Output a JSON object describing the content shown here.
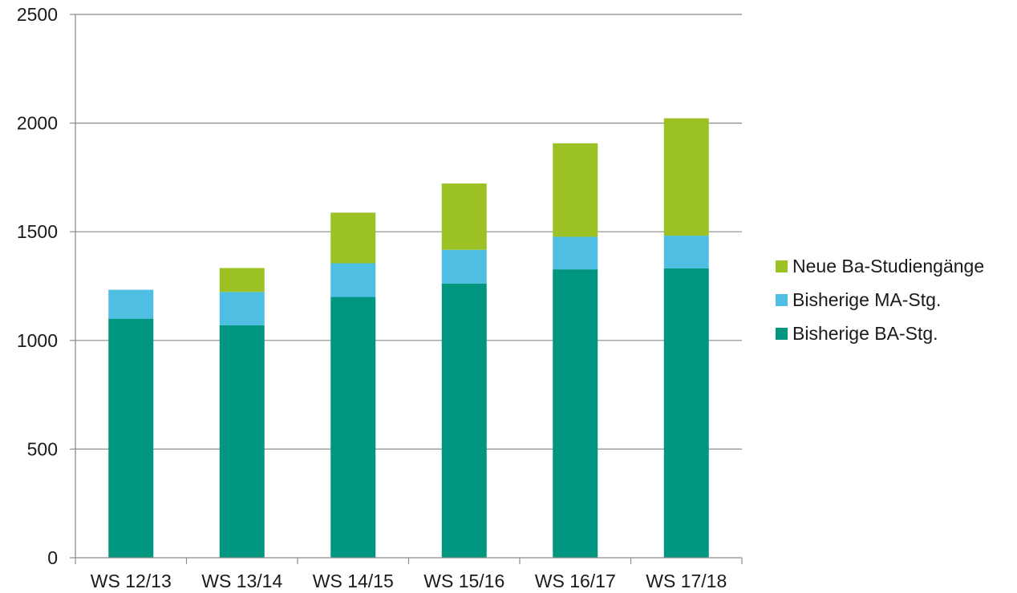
{
  "chart_data": {
    "type": "bar",
    "stacked": true,
    "categories": [
      "WS 12/13",
      "WS 13/14",
      "WS 14/15",
      "WS 15/16",
      "WS 16/17",
      "WS 17/18"
    ],
    "series": [
      {
        "name": "Bisherige BA-Stg.",
        "color": "#009680",
        "values": [
          1100,
          1070,
          1200,
          1262,
          1327,
          1332
        ]
      },
      {
        "name": "Bisherige MA-Stg.",
        "color": "#4ebee3",
        "values": [
          133,
          153,
          155,
          155,
          150,
          150
        ]
      },
      {
        "name": "Neue Ba-Studiengänge",
        "color": "#9bc125",
        "values": [
          0,
          110,
          233,
          305,
          430,
          540
        ]
      }
    ],
    "ylim": [
      0,
      2500
    ],
    "yticks": [
      0,
      500,
      1000,
      1500,
      2000,
      2500
    ],
    "xlabel": "",
    "ylabel": "",
    "title": "",
    "grid": true,
    "legend_position": "right",
    "legend_order": [
      "Neue Ba-Studiengänge",
      "Bisherige MA-Stg.",
      "Bisherige BA-Stg."
    ]
  }
}
